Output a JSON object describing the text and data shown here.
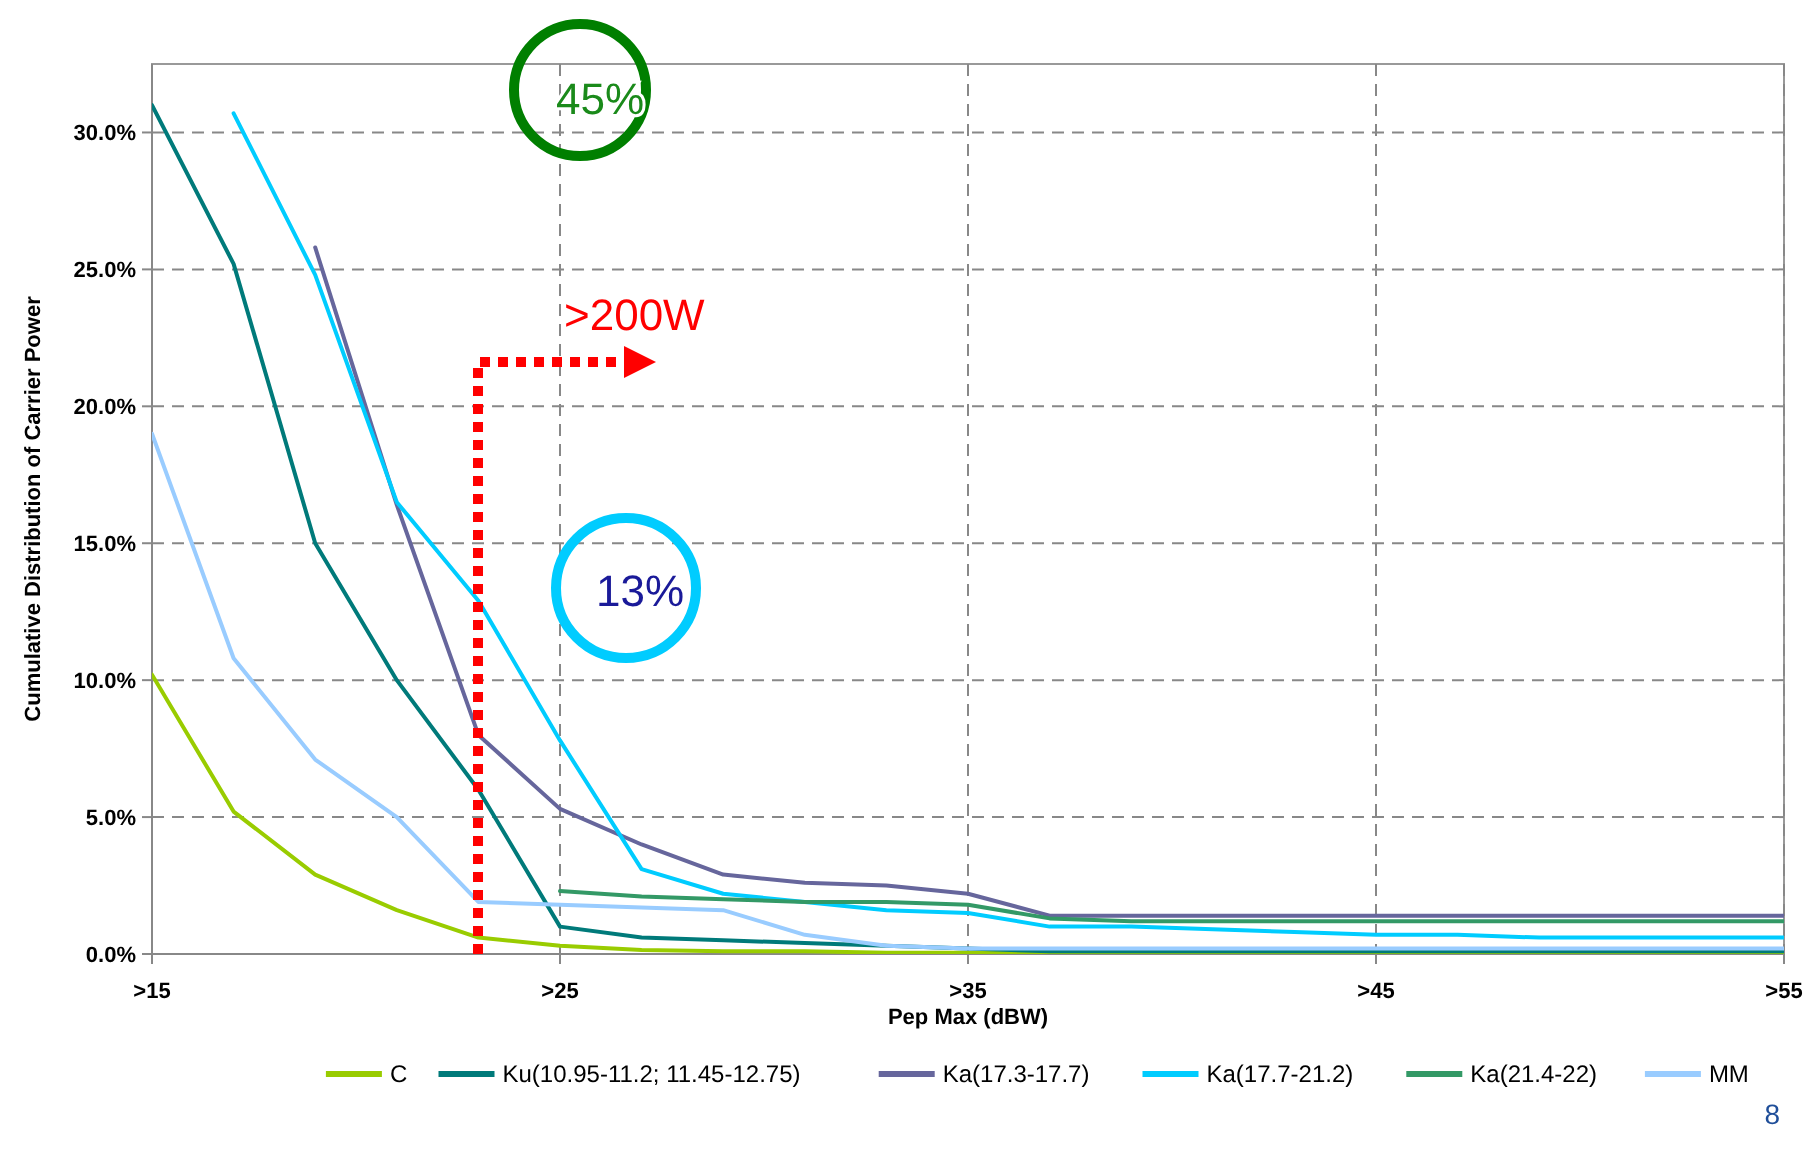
{
  "chart_data": {
    "type": "line",
    "xlabel": "Pep Max (dBW)",
    "ylabel": "Cumulative Distribution of Carrier Power",
    "categories": [
      ">15",
      null,
      null,
      null,
      null,
      ">25",
      null,
      null,
      null,
      null,
      ">35",
      null,
      null,
      null,
      null,
      ">45",
      null,
      null,
      null,
      null,
      ">55"
    ],
    "ylim": [
      0,
      32.5
    ],
    "yticks": [
      {
        "value": 0,
        "label": "0.0%"
      },
      {
        "value": 5,
        "label": "5.0%"
      },
      {
        "value": 10,
        "label": "10.0%"
      },
      {
        "value": 15,
        "label": "15.0%"
      },
      {
        "value": 20,
        "label": "20.0%"
      },
      {
        "value": 25,
        "label": "25.0%"
      },
      {
        "value": 30,
        "label": "30.0%"
      }
    ],
    "grid": true,
    "legend": "bottom",
    "line_style": "solid",
    "marker": "none",
    "series": [
      {
        "name": "C",
        "color": "#99cc00",
        "values": [
          10.2,
          5.2,
          2.9,
          1.6,
          0.6,
          0.3,
          0.15,
          0.1,
          0.1,
          0.05,
          0.05,
          0.02,
          0.02,
          0.02,
          0.02,
          0.02,
          0.02,
          0.02,
          0.02,
          0.02,
          0.02
        ]
      },
      {
        "name": "Ku(10.95-11.2; 11.45-12.75)",
        "color": "#007a7a",
        "values": [
          31,
          25.2,
          15,
          10,
          6,
          1,
          0.6,
          0.5,
          0.4,
          0.3,
          0.2,
          0.1,
          0.1,
          0.1,
          0.1,
          0.1,
          0.1,
          0.1,
          0.1,
          0.1,
          0.1
        ]
      },
      {
        "name": "Ka(17.3-17.7)",
        "color": "#66669c",
        "values": [
          null,
          null,
          25.8,
          16.4,
          8,
          5.3,
          4,
          2.9,
          2.6,
          2.5,
          2.2,
          1.4,
          1.4,
          1.4,
          1.4,
          1.4,
          1.4,
          1.4,
          1.4,
          1.4,
          1.4
        ]
      },
      {
        "name": "Ka(17.7-21.2)",
        "color": "#00ccff",
        "values": [
          null,
          30.7,
          24.8,
          16.5,
          12.9,
          7.8,
          3.1,
          2.2,
          1.9,
          1.6,
          1.5,
          1,
          1,
          0.9,
          0.8,
          0.7,
          0.7,
          0.6,
          0.6,
          0.6,
          0.6
        ]
      },
      {
        "name": "Ka(21.4-22)",
        "color": "#339966",
        "values": [
          null,
          null,
          null,
          null,
          null,
          2.3,
          2.1,
          2,
          1.9,
          1.9,
          1.8,
          1.3,
          1.2,
          1.2,
          1.2,
          1.2,
          1.2,
          1.2,
          1.2,
          1.2,
          1.2
        ]
      },
      {
        "name": "MM",
        "color": "#99ccff",
        "values": [
          19,
          10.8,
          7.1,
          5,
          1.9,
          1.8,
          1.7,
          1.6,
          0.7,
          0.3,
          0.2,
          0.2,
          0.2,
          0.2,
          0.2,
          0.2,
          0.2,
          0.2,
          0.2,
          0.2,
          0.2
        ]
      }
    ],
    "annotations": [
      "45%",
      "13%",
      ">200W",
      "8"
    ]
  }
}
